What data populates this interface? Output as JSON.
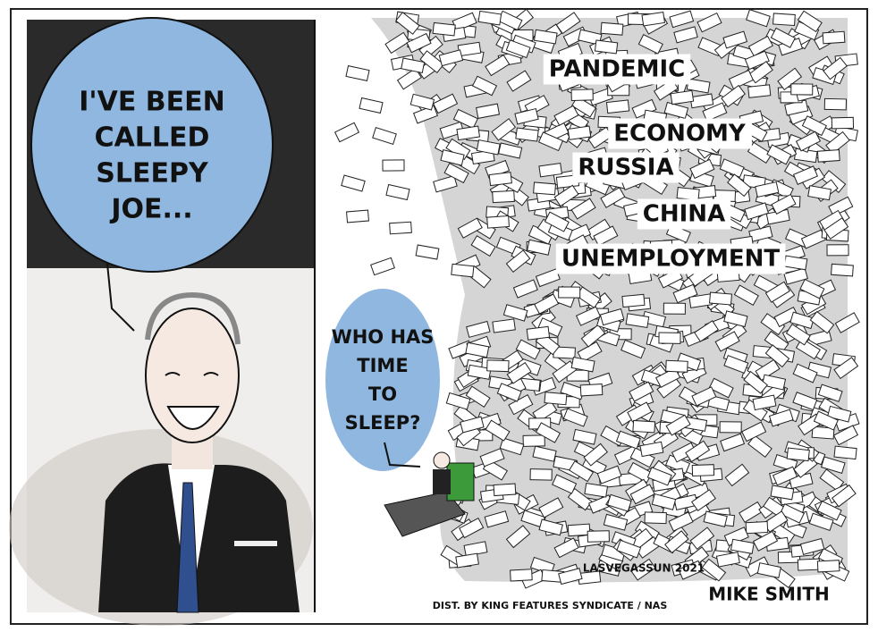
{
  "panels": [
    {
      "speech_lines": [
        "I'VE BEEN",
        "CALLED",
        "SLEEPY",
        "JOE..."
      ]
    },
    {
      "speech_lines": [
        "WHO HAS",
        "TIME",
        "TO",
        "SLEEP?"
      ],
      "pile_labels": [
        "PANDEMIC",
        "ECONOMY",
        "RUSSIA",
        "CHINA",
        "UNEMPLOYMENT"
      ]
    }
  ],
  "credits": {
    "source": "LASVEGASSUN 2021",
    "distribution": "DIST. BY KING FEATURES SYNDICATE / NAS",
    "artist": "MIKE SMITH"
  }
}
